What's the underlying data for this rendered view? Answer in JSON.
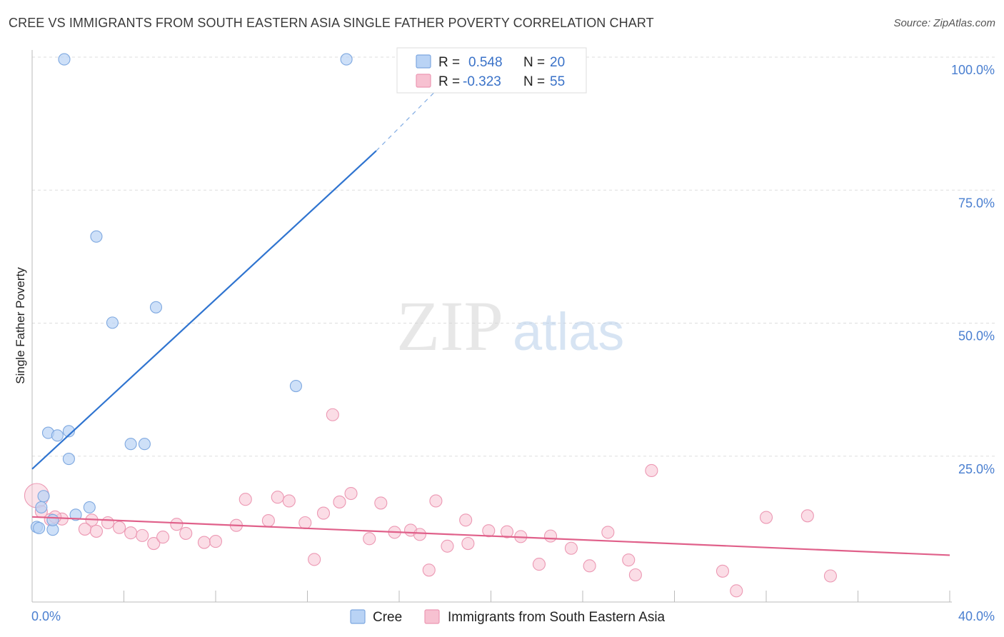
{
  "title": "CREE VS IMMIGRANTS FROM SOUTH EASTERN ASIA SINGLE FATHER POVERTY CORRELATION CHART",
  "source": "Source: ZipAtlas.com",
  "watermark": {
    "zip": "ZIP",
    "atlas": "atlas"
  },
  "colors": {
    "cree_fill": "#b9d3f5",
    "cree_stroke": "#7ea8e0",
    "cree_line": "#2f74d0",
    "sea_fill": "#f7c1d1",
    "sea_stroke": "#ec98b3",
    "sea_line": "#e0608a",
    "grid": "#dddddd",
    "tick_label": "#4a7fd0"
  },
  "legend": {
    "items": [
      {
        "r_label": "R =",
        "r_value": "0.548",
        "n_label": "N =",
        "n_value": "20"
      },
      {
        "r_label": "R =",
        "r_value": "-0.323",
        "n_label": "N =",
        "n_value": "55"
      }
    ]
  },
  "bottom_legend": [
    "Cree",
    "Immigrants from South Eastern Asia"
  ],
  "chart_data": {
    "type": "scatter",
    "title": "CREE VS IMMIGRANTS FROM SOUTH EASTERN ASIA SINGLE FATHER POVERTY CORRELATION CHART",
    "xlabel": "",
    "ylabel": "Single Father Poverty",
    "xlim": [
      0,
      40
    ],
    "ylim": [
      0,
      100
    ],
    "x_tick_labels": [
      "0.0%",
      "40.0%"
    ],
    "y_tick_labels": [
      {
        "value": 100,
        "label": "100.0%"
      },
      {
        "value": 75,
        "label": "75.0%"
      },
      {
        "value": 50,
        "label": "50.0%"
      },
      {
        "value": 25,
        "label": "25.0%"
      }
    ],
    "series": [
      {
        "name": "Cree",
        "points": [
          [
            1.4,
            102.0
          ],
          [
            13.7,
            102.0
          ],
          [
            2.8,
            68.7
          ],
          [
            5.4,
            55.4
          ],
          [
            3.5,
            52.5
          ],
          [
            11.5,
            40.6
          ],
          [
            0.7,
            31.8
          ],
          [
            1.1,
            31.3
          ],
          [
            1.6,
            32.1
          ],
          [
            4.3,
            29.7
          ],
          [
            4.9,
            29.7
          ],
          [
            1.6,
            26.9
          ],
          [
            0.5,
            19.9
          ],
          [
            0.4,
            17.8
          ],
          [
            2.5,
            17.8
          ],
          [
            1.9,
            16.4
          ],
          [
            0.2,
            14.1
          ],
          [
            0.3,
            13.9
          ],
          [
            0.9,
            13.6
          ],
          [
            0.9,
            15.4
          ]
        ],
        "trend": {
          "x0": 0,
          "y0": 25.0,
          "x1": 15.0,
          "y1": 84.8
        },
        "trend_dashed_to": {
          "x": 18.5,
          "y": 100.0
        }
      },
      {
        "name": "Immigrants from South Eastern Asia",
        "points": [
          [
            0.2,
            20.0
          ],
          [
            0.8,
            15.5
          ],
          [
            1.3,
            15.6
          ],
          [
            2.6,
            15.4
          ],
          [
            2.3,
            13.7
          ],
          [
            2.8,
            13.3
          ],
          [
            3.3,
            14.9
          ],
          [
            3.8,
            14.0
          ],
          [
            4.3,
            13.0
          ],
          [
            4.8,
            12.5
          ],
          [
            5.3,
            11.0
          ],
          [
            5.7,
            12.2
          ],
          [
            6.3,
            14.6
          ],
          [
            6.7,
            12.9
          ],
          [
            7.5,
            11.2
          ],
          [
            8.0,
            11.4
          ],
          [
            8.9,
            14.4
          ],
          [
            9.3,
            19.3
          ],
          [
            10.3,
            15.3
          ],
          [
            10.7,
            19.7
          ],
          [
            11.2,
            19.0
          ],
          [
            11.9,
            14.9
          ],
          [
            12.3,
            8.0
          ],
          [
            12.7,
            16.7
          ],
          [
            13.1,
            35.2
          ],
          [
            13.4,
            18.8
          ],
          [
            13.9,
            20.4
          ],
          [
            14.7,
            11.9
          ],
          [
            15.2,
            18.6
          ],
          [
            15.8,
            13.1
          ],
          [
            16.5,
            13.5
          ],
          [
            16.9,
            12.7
          ],
          [
            17.3,
            6.0
          ],
          [
            17.6,
            19.0
          ],
          [
            18.1,
            10.5
          ],
          [
            18.9,
            15.4
          ],
          [
            19.0,
            11.0
          ],
          [
            19.9,
            13.4
          ],
          [
            20.7,
            13.2
          ],
          [
            21.3,
            12.3
          ],
          [
            22.1,
            7.1
          ],
          [
            22.6,
            12.4
          ],
          [
            23.5,
            10.1
          ],
          [
            24.3,
            6.8
          ],
          [
            25.1,
            13.1
          ],
          [
            26.0,
            7.9
          ],
          [
            26.3,
            5.1
          ],
          [
            27.0,
            24.7
          ],
          [
            30.1,
            5.8
          ],
          [
            30.7,
            2.1
          ],
          [
            32.0,
            15.9
          ],
          [
            33.8,
            16.2
          ],
          [
            34.8,
            4.9
          ],
          [
            1.0,
            16.0
          ],
          [
            0.4,
            17.0
          ]
        ],
        "trend": {
          "x0": 0,
          "y0": 16.0,
          "x1": 40,
          "y1": 8.8
        }
      }
    ]
  }
}
